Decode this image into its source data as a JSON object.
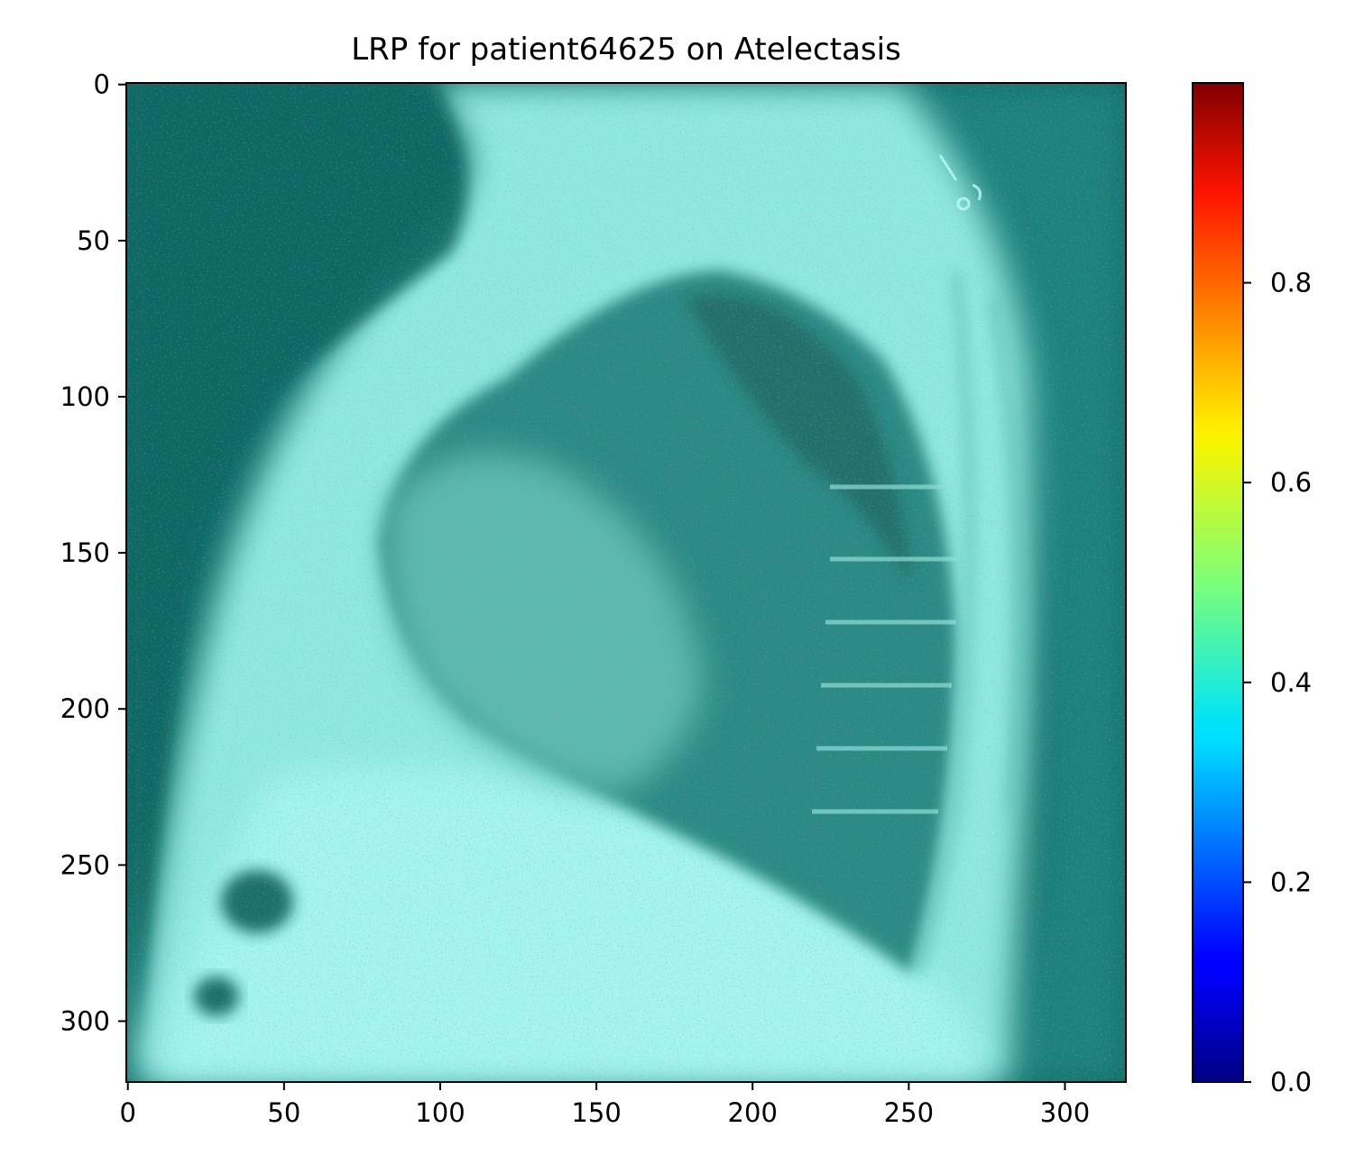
{
  "chart_data": {
    "type": "heatmap",
    "title": "LRP for patient64625 on Atelectasis",
    "xlabel": "",
    "ylabel": "",
    "image_content": "lateral chest x-ray overlaid with LRP relevance heatmap",
    "x_range": [
      0,
      320
    ],
    "y_range": [
      320,
      0
    ],
    "x_ticks": [
      0,
      50,
      100,
      150,
      200,
      250,
      300
    ],
    "y_ticks": [
      0,
      50,
      100,
      150,
      200,
      250,
      300
    ],
    "colorbar": {
      "colormap": "jet",
      "range": [
        0.0,
        1.0
      ],
      "ticks": [
        0.0,
        0.2,
        0.4,
        0.6,
        0.8
      ],
      "tick_labels": [
        "0.0",
        "0.2",
        "0.4",
        "0.6",
        "0.8"
      ]
    },
    "colors": {
      "dark_teal": "#0e6b66",
      "light_cyan": "#a3f5ee"
    }
  }
}
